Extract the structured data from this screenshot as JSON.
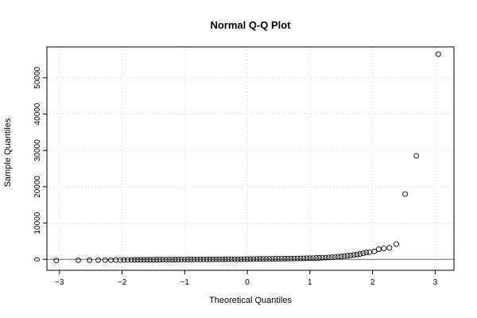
{
  "chart_data": {
    "type": "scatter",
    "title": "Normal Q-Q Plot",
    "xlabel": "Theoretical Quantiles",
    "ylabel": "Sample Quantiles",
    "xlim": [
      -3.2,
      3.3
    ],
    "ylim": [
      -3000,
      58500
    ],
    "x_ticks": [
      -3,
      -2,
      -1,
      0,
      1,
      2,
      3
    ],
    "x_tick_labels": [
      "−3",
      "−2",
      "−1",
      "0",
      "1",
      "2",
      "3"
    ],
    "y_ticks": [
      0,
      10000,
      20000,
      30000,
      40000,
      50000
    ],
    "y_tick_labels": [
      "0",
      "10000",
      "20000",
      "30000",
      "40000",
      "50000"
    ],
    "grid": true,
    "reference_line": {
      "slope": 0,
      "intercept": 0
    },
    "x": [
      -3.05,
      -2.7,
      -2.52,
      -2.38,
      -2.27,
      -2.18,
      -2.1,
      -2.03,
      -1.97,
      -1.91,
      -1.85,
      -1.8,
      -1.75,
      -1.7,
      -1.65,
      -1.6,
      -1.55,
      -1.5,
      -1.45,
      -1.4,
      -1.35,
      -1.3,
      -1.25,
      -1.2,
      -1.15,
      -1.1,
      -1.05,
      -1.0,
      -0.95,
      -0.9,
      -0.85,
      -0.8,
      -0.75,
      -0.7,
      -0.65,
      -0.6,
      -0.55,
      -0.5,
      -0.45,
      -0.4,
      -0.35,
      -0.3,
      -0.25,
      -0.2,
      -0.15,
      -0.1,
      -0.05,
      0.0,
      0.05,
      0.1,
      0.15,
      0.2,
      0.25,
      0.3,
      0.35,
      0.4,
      0.45,
      0.5,
      0.55,
      0.6,
      0.65,
      0.7,
      0.75,
      0.8,
      0.85,
      0.9,
      0.95,
      1.0,
      1.05,
      1.1,
      1.15,
      1.2,
      1.25,
      1.3,
      1.35,
      1.4,
      1.45,
      1.5,
      1.55,
      1.6,
      1.65,
      1.7,
      1.75,
      1.8,
      1.85,
      1.9,
      1.95,
      2.03,
      2.1,
      2.18,
      2.27,
      2.38,
      2.52,
      2.7,
      3.05
    ],
    "y": [
      -300,
      -230,
      -200,
      -180,
      -170,
      -160,
      -150,
      -140,
      -130,
      -120,
      -115,
      -110,
      -105,
      -100,
      -95,
      -90,
      -85,
      -80,
      -75,
      -70,
      -65,
      -60,
      -55,
      -50,
      -45,
      -40,
      -35,
      -30,
      -25,
      -20,
      -15,
      -10,
      -5,
      0,
      5,
      10,
      15,
      20,
      25,
      30,
      35,
      40,
      45,
      50,
      55,
      60,
      70,
      80,
      90,
      100,
      110,
      120,
      130,
      140,
      150,
      160,
      170,
      180,
      190,
      200,
      210,
      220,
      240,
      260,
      280,
      300,
      320,
      340,
      360,
      390,
      420,
      450,
      490,
      540,
      590,
      650,
      720,
      800,
      900,
      1000,
      1100,
      1200,
      1350,
      1500,
      1700,
      1900,
      2000,
      2200,
      2800,
      3000,
      3200,
      4200,
      18000,
      28500,
      56500
    ]
  }
}
